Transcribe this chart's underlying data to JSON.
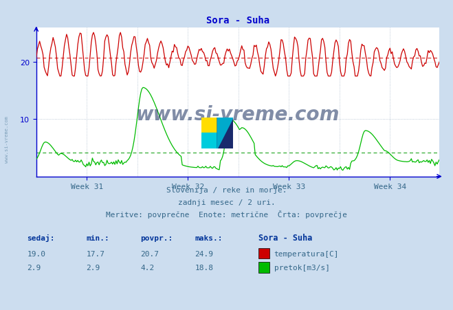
{
  "title": "Sora - Suha",
  "title_color": "#0000cc",
  "bg_color": "#ccddef",
  "plot_bg_color": "#ffffff",
  "grid_color": "#aabbcc",
  "axis_color": "#0000cc",
  "text_color": "#336688",
  "temp_color": "#cc0000",
  "flow_color": "#00bb00",
  "flow_avg_color": "#009900",
  "temp_avg": 20.7,
  "temp_min": 17.7,
  "temp_max": 24.9,
  "temp_now": 19.0,
  "flow_avg": 4.2,
  "flow_min": 2.9,
  "flow_max": 18.8,
  "flow_now": 2.9,
  "week_labels": [
    "Week 31",
    "Week 32",
    "Week 33",
    "Week 34"
  ],
  "yticks": [
    10,
    20
  ],
  "subtitle1": "Slovenija / reke in morje.",
  "subtitle2": "zadnji mesec / 2 uri.",
  "subtitle3": "Meritve: povprečne  Enote: metrične  Črta: povprečje",
  "legend_title": "Sora - Suha",
  "legend_temp_label": "temperatura[C]",
  "legend_flow_label": "pretok[m3/s]",
  "num_points": 360,
  "watermark_text": "www.si-vreme.com",
  "watermark_color": "#1a3060",
  "watermark_alpha": 0.55
}
